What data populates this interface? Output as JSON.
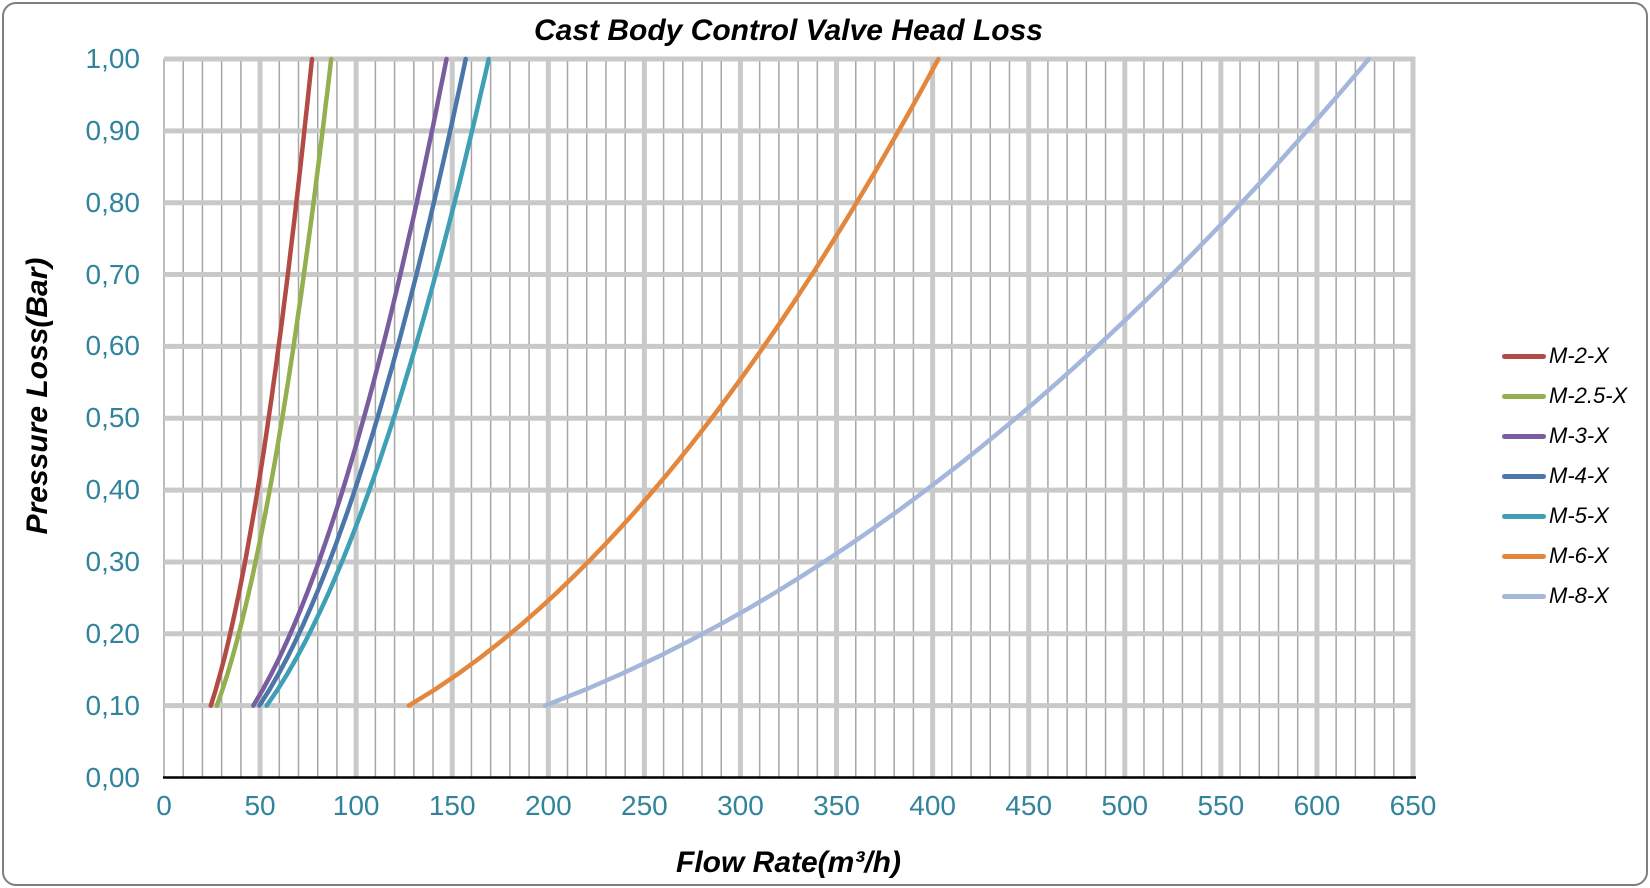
{
  "chart": {
    "frame_border_color": "#7F7F7F",
    "background_color": "#FFFFFF"
  },
  "chart_data": {
    "type": "line",
    "title": "Cast Body Control Valve Head Loss",
    "xlabel": "Flow Rate(m³/h)",
    "ylabel": "Pressure Loss(Bar)",
    "xlim": [
      0,
      650
    ],
    "ylim": [
      0.0,
      1.0
    ],
    "x_major_interval": 50,
    "x_minor_interval": 10,
    "y_major_interval": 0.1,
    "grid": "on",
    "legend_position": "right",
    "x_tick_values": [
      0,
      50,
      100,
      150,
      200,
      250,
      300,
      350,
      400,
      450,
      500,
      550,
      600,
      650
    ],
    "x_tick_labels": [
      "0",
      "50",
      "100",
      "150",
      "200",
      "250",
      "300",
      "350",
      "400",
      "450",
      "500",
      "550",
      "600",
      "650"
    ],
    "y_tick_values": [
      0.0,
      0.1,
      0.2,
      0.3,
      0.4,
      0.5,
      0.6,
      0.7,
      0.8,
      0.9,
      1.0
    ],
    "y_tick_labels": [
      "0,00",
      "0,10",
      "0,20",
      "0,30",
      "0,40",
      "0,50",
      "0,60",
      "0,70",
      "0,80",
      "0,90",
      "1,00"
    ],
    "x": [
      0.1,
      0.2,
      0.3,
      0.4,
      0.5,
      0.6,
      0.7,
      0.8,
      0.9,
      1.0
    ],
    "x_is": "pressure_loss_bar",
    "series": [
      {
        "name": "M-2-X",
        "color": "#B24A46",
        "kv": 77,
        "flow_values": [
          24.3,
          34.4,
          42.2,
          48.7,
          54.4,
          59.6,
          64.4,
          68.9,
          73.0,
          77.0
        ]
      },
      {
        "name": "M-2.5-X",
        "color": "#93AF4E",
        "kv": 87,
        "flow_values": [
          27.5,
          38.9,
          47.7,
          55.0,
          61.5,
          67.4,
          72.8,
          77.8,
          82.5,
          87.0
        ]
      },
      {
        "name": "M-3-X",
        "color": "#7A5D9E",
        "kv": 147,
        "flow_values": [
          46.5,
          65.7,
          80.5,
          93.0,
          103.9,
          113.9,
          123.0,
          131.5,
          139.5,
          147.0
        ]
      },
      {
        "name": "M-4-X",
        "color": "#4A76A9",
        "kv": 157,
        "flow_values": [
          49.6,
          70.2,
          86.0,
          99.3,
          111.0,
          121.6,
          131.4,
          140.4,
          148.9,
          157.0
        ]
      },
      {
        "name": "M-5-X",
        "color": "#3FA0B5",
        "kv": 169,
        "flow_values": [
          53.4,
          75.6,
          92.6,
          106.9,
          119.5,
          130.9,
          141.4,
          151.2,
          160.3,
          169.0
        ]
      },
      {
        "name": "M-6-X",
        "color": "#E2873D",
        "kv": 403,
        "flow_values": [
          127.4,
          180.2,
          220.7,
          254.9,
          285.0,
          312.2,
          337.2,
          360.5,
          382.3,
          403.0
        ]
      },
      {
        "name": "M-8-X",
        "color": "#A4B7DB",
        "kv": 627,
        "flow_values": [
          198.3,
          280.4,
          343.4,
          396.6,
          443.4,
          485.7,
          524.6,
          560.8,
          594.8,
          627.0
        ]
      }
    ],
    "colors": {
      "tick_label": "#31849B",
      "major_grid": "#C9C9C9",
      "minor_grid": "#A6A6A6",
      "axis_line": "#000000",
      "title_text": "#000000"
    }
  }
}
